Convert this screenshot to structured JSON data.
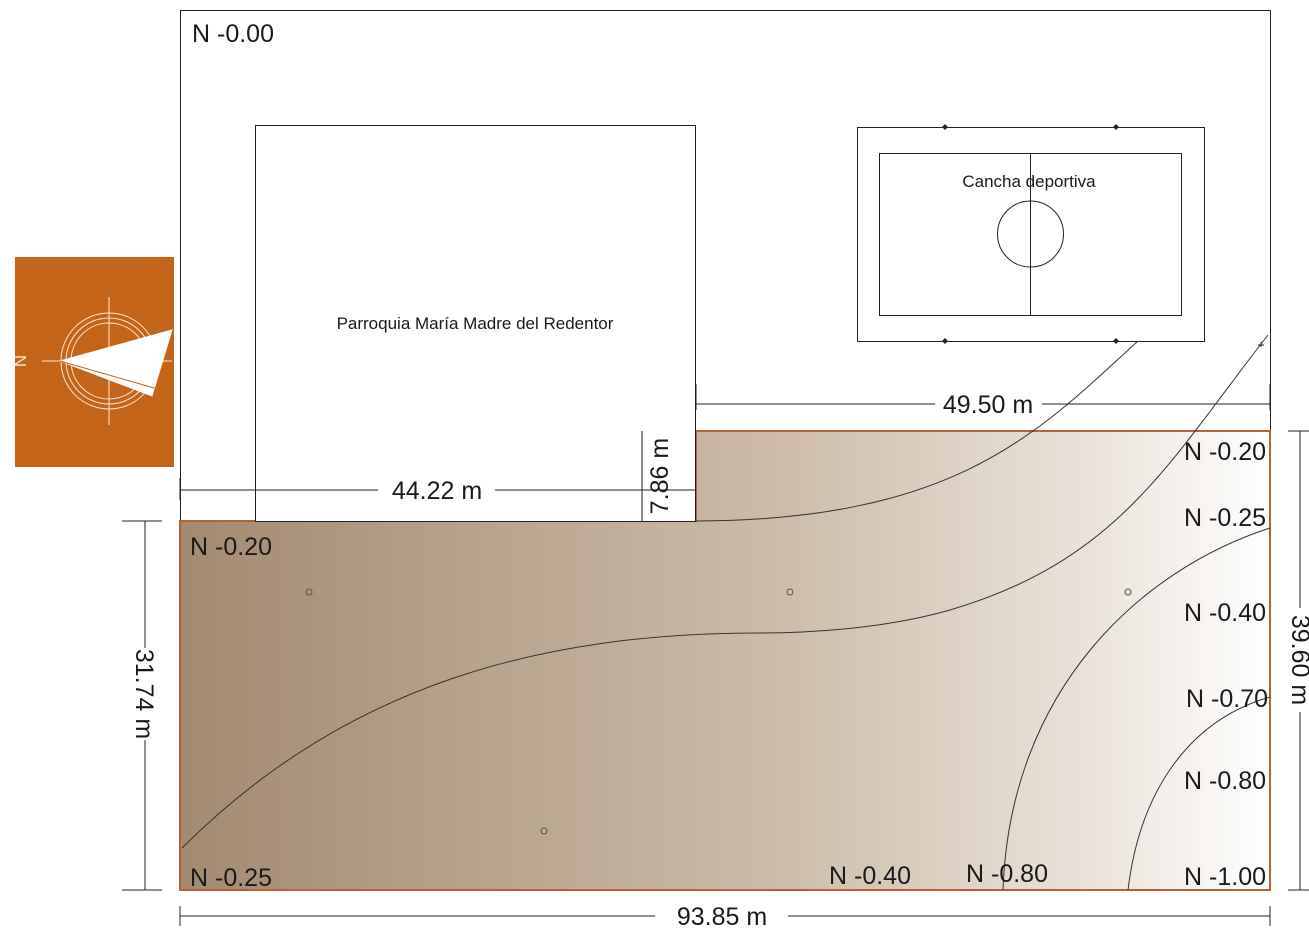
{
  "labels": {
    "top_level": "N -0.00",
    "church": "Parroquia María Madre del Redentor",
    "court": "Cancha deportiva"
  },
  "dimensions": {
    "court_offset": "49.50 m",
    "church_width": "44.22 m",
    "step_height": "7.86 m",
    "left_depth": "31.74 m",
    "right_depth": "39.60 m",
    "total_width": "93.85 m"
  },
  "levels": {
    "left_top": "N -0.20",
    "left_bottom": "N -0.25",
    "bottom_mid": "N -0.40",
    "bottom_mid2": "N -0.80",
    "bottom_right": "N -1.00",
    "right_1": "N -0.20",
    "right_2": "N -0.25",
    "right_3": "N -0.40",
    "right_4": "N -0.70",
    "right_5": "N -0.80"
  },
  "compass": {
    "north_letter": "N",
    "background_color": "#c46419"
  },
  "colors": {
    "terrain_dark": "#a48a6f",
    "terrain_light": "#ffffff",
    "terrain_border": "#c0623a"
  }
}
